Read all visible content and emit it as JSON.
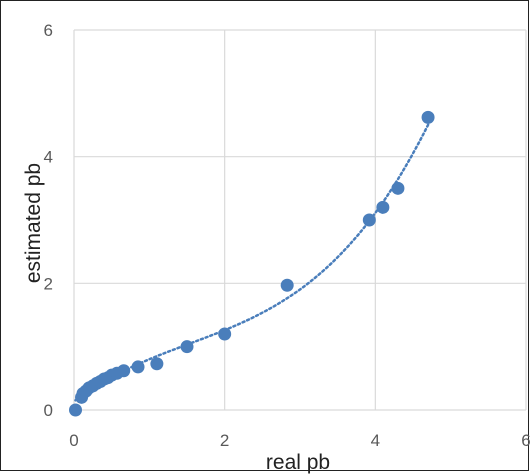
{
  "chart_data": {
    "type": "scatter",
    "xlabel": "real pb",
    "ylabel": "estimated pb",
    "xlim": [
      0,
      6
    ],
    "ylim": [
      0,
      6
    ],
    "x_ticks": [
      "0",
      "2",
      "4",
      "6"
    ],
    "y_ticks": [
      "0",
      "2",
      "4",
      "6"
    ],
    "grid": true,
    "legend": "none",
    "marker_color": "#4a7ebb",
    "trendline": {
      "style": "dotted",
      "type": "polynomial",
      "color": "#4a7ebb"
    },
    "series": [
      {
        "x": [
          0.02,
          0.1,
          0.12,
          0.16,
          0.2,
          0.25,
          0.3,
          0.35,
          0.4,
          0.45,
          0.5,
          0.57,
          0.66,
          0.85,
          1.1,
          1.5,
          2.0,
          2.83,
          3.92,
          4.1,
          4.3,
          4.7
        ],
        "y": [
          0.0,
          0.2,
          0.26,
          0.3,
          0.35,
          0.38,
          0.42,
          0.45,
          0.49,
          0.51,
          0.55,
          0.58,
          0.62,
          0.68,
          0.73,
          1.0,
          1.2,
          1.97,
          3.0,
          3.2,
          3.5,
          4.62
        ]
      }
    ]
  }
}
